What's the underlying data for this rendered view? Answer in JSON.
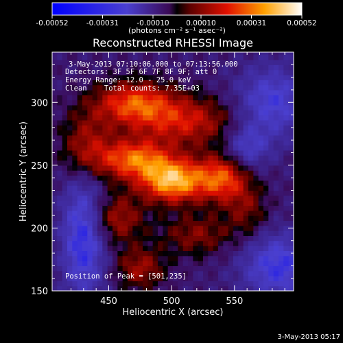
{
  "chart_data": {
    "type": "heatmap",
    "title": "Reconstructed RHESSI Image",
    "xlabel": "Heliocentric X (arcsec)",
    "ylabel": "Heliocentric Y (arcsec)",
    "xlim": [
      405,
      597
    ],
    "ylim": [
      150,
      340
    ],
    "x_ticks": [
      450,
      500,
      550
    ],
    "y_ticks": [
      150,
      200,
      250,
      300
    ],
    "colorbar": {
      "range": [
        -0.00052,
        0.00052
      ],
      "tick_values": [
        -0.00052,
        -0.00031,
        -0.0001,
        0.0001,
        0.00031,
        0.00052
      ],
      "tick_labels": [
        "-0.00052",
        "-0.00031",
        "-0.00010",
        "0.00010",
        "0.00031",
        "0.00052"
      ],
      "units": "(photons cm⁻² s⁻¹ asec⁻²)"
    },
    "annotations": [
      "3-May-2013 07:10:06.000 to 07:13:56.000",
      "Detectors: 3F 5F 6F 7F 8F 9F; att 0",
      "Energy Range: 12.0 - 25.0 keV",
      "Clean    Total counts: 7.35E+03"
    ],
    "peak_label": "Position of Peak = [501,235]",
    "peak": [
      501,
      235
    ],
    "sources": [
      {
        "x": 501,
        "y": 238,
        "sx": 18,
        "sy": 12,
        "amp": 0.00048
      },
      {
        "x": 470,
        "y": 255,
        "sx": 20,
        "sy": 11,
        "amp": 0.00036
      },
      {
        "x": 540,
        "y": 240,
        "sx": 14,
        "sy": 13,
        "amp": 0.00033
      },
      {
        "x": 470,
        "y": 300,
        "sx": 22,
        "sy": 12,
        "amp": 0.00032
      },
      {
        "x": 510,
        "y": 285,
        "sx": 30,
        "sy": 14,
        "amp": 0.00026
      },
      {
        "x": 432,
        "y": 265,
        "sx": 14,
        "sy": 20,
        "amp": 0.00022
      },
      {
        "x": 455,
        "y": 208,
        "sx": 16,
        "sy": 14,
        "amp": 0.00022
      },
      {
        "x": 475,
        "y": 168,
        "sx": 14,
        "sy": 12,
        "amp": 0.0002
      },
      {
        "x": 560,
        "y": 215,
        "sx": 12,
        "sy": 16,
        "amp": 0.00015
      },
      {
        "x": 520,
        "y": 195,
        "sx": 20,
        "sy": 12,
        "amp": 0.00017
      },
      {
        "x": 430,
        "y": 195,
        "sx": 12,
        "sy": 35,
        "amp": -0.00032
      },
      {
        "x": 585,
        "y": 170,
        "sx": 20,
        "sy": 18,
        "amp": -0.00028
      },
      {
        "x": 580,
        "y": 300,
        "sx": 20,
        "sy": 20,
        "amp": -0.00025
      },
      {
        "x": 560,
        "y": 265,
        "sx": 12,
        "sy": 12,
        "amp": -0.0002
      }
    ]
  },
  "footer_timestamp": "3-May-2013 05:17"
}
